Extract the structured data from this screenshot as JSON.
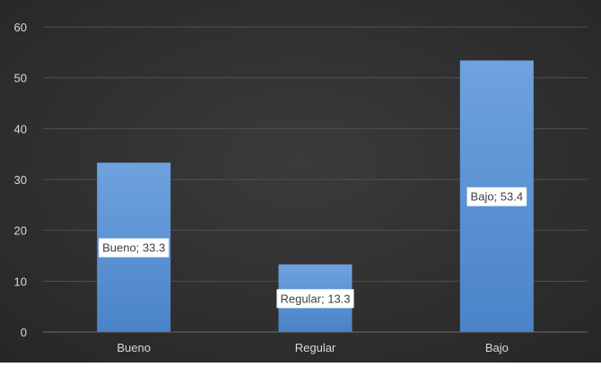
{
  "chart_data": {
    "type": "bar",
    "title": "",
    "xlabel": "",
    "ylabel": "",
    "categories": [
      "Bueno",
      "Regular",
      "Bajo"
    ],
    "values": [
      33.3,
      13.3,
      53.4
    ],
    "data_labels": [
      "Bueno; 33.3",
      "Regular; 13.3",
      "Bajo; 53.4"
    ],
    "ylim": [
      0,
      60
    ],
    "yticks": [
      0,
      10,
      20,
      30,
      40,
      50,
      60
    ],
    "grid": true,
    "legend": "none"
  },
  "colors": {
    "background_outer": "#3b3b3b",
    "background_inner": "#2a2a2a",
    "bar_top": "#6fa2de",
    "bar_bottom": "#4a83c8",
    "gridline": "#4f4f4f",
    "axis_text": "#d9d9d9",
    "label_box": "#ffffff",
    "label_text": "#404040"
  }
}
